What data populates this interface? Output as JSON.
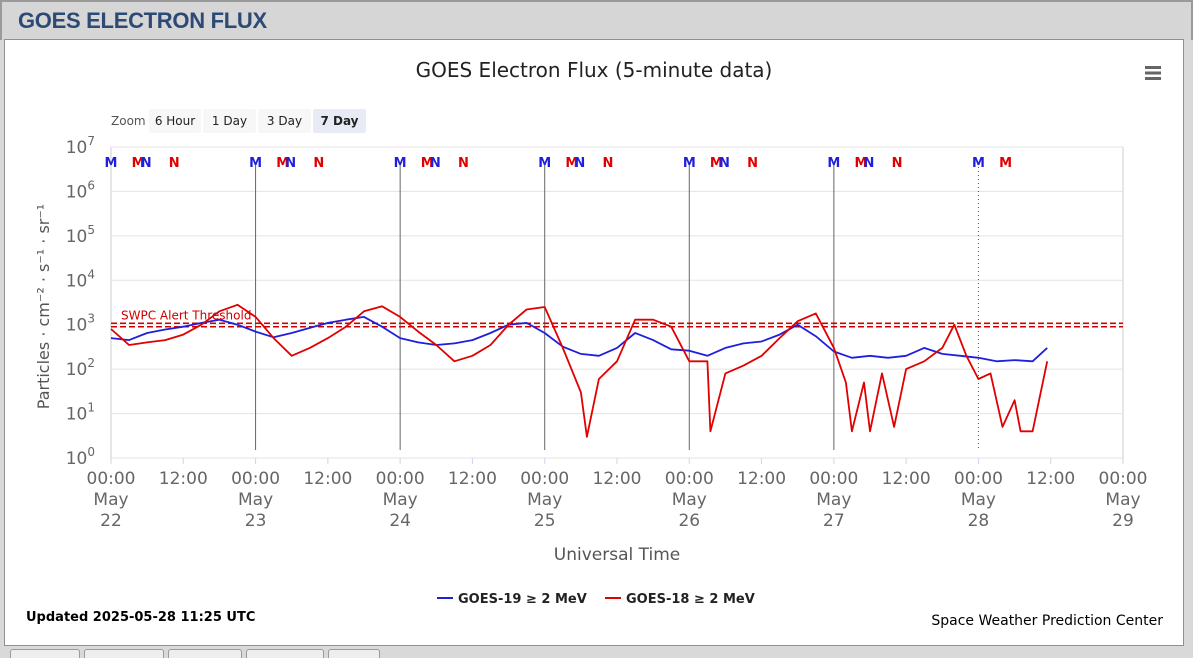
{
  "page": {
    "header_title": "GOES ELECTRON FLUX"
  },
  "colors": {
    "goes19": "#1f1fdc",
    "goes18": "#e00000",
    "header_text": "#2c4a74",
    "threshold": "#d00000"
  },
  "icons": {
    "menu": "hamburger-menu-icon"
  },
  "chart": {
    "title": "GOES Electron Flux (5-minute data)",
    "xlabel": "Universal Time",
    "ylabel": "Particles · cm⁻² · s⁻¹ · sr⁻¹",
    "zoom_label": "Zoom",
    "zoom_buttons": [
      "6 Hour",
      "1 Day",
      "3 Day",
      "7 Day"
    ],
    "zoom_selected": "7 Day",
    "threshold_label": "SWPC Alert Threshold",
    "updated": "Updated 2025-05-28 11:25 UTC",
    "credit": "Space Weather Prediction Center",
    "legend": [
      "GOES-19 ≥ 2 MeV",
      "GOES-18 ≥ 2 MeV"
    ]
  },
  "chart_data": {
    "type": "line",
    "title": "GOES Electron Flux (5-minute data)",
    "xlabel": "Universal Time",
    "ylabel": "Particles · cm⁻² · s⁻¹ · sr⁻¹",
    "y_scale": "log",
    "ylim": [
      1,
      10000000
    ],
    "y_ticks": [
      "10⁰",
      "10¹",
      "10²",
      "10³",
      "10⁴",
      "10⁵",
      "10⁶",
      "10⁷"
    ],
    "xlim": [
      "2025-05-22 00:00",
      "2025-05-29 00:00"
    ],
    "x_ticks": [
      {
        "time": "00:00",
        "date": "May",
        "day": "22"
      },
      {
        "time": "12:00"
      },
      {
        "time": "00:00",
        "date": "May",
        "day": "23"
      },
      {
        "time": "12:00"
      },
      {
        "time": "00:00",
        "date": "May",
        "day": "24"
      },
      {
        "time": "12:00"
      },
      {
        "time": "00:00",
        "date": "May",
        "day": "25"
      },
      {
        "time": "12:00"
      },
      {
        "time": "00:00",
        "date": "May",
        "day": "26"
      },
      {
        "time": "12:00"
      },
      {
        "time": "00:00",
        "date": "May",
        "day": "27"
      },
      {
        "time": "12:00"
      },
      {
        "time": "00:00",
        "date": "May",
        "day": "28"
      },
      {
        "time": "12:00"
      },
      {
        "time": "00:00",
        "date": "May",
        "day": "29"
      }
    ],
    "grid": true,
    "legend_position": "bottom-center",
    "threshold": {
      "label": "SWPC Alert Threshold",
      "value": 1000
    },
    "day_markers": [
      "2025-05-23 00:00",
      "2025-05-24 00:00",
      "2025-05-25 00:00",
      "2025-05-26 00:00",
      "2025-05-27 00:00",
      "2025-05-28 00:00"
    ],
    "local_time_markers": [
      {
        "label": "M",
        "series": "GOES-19",
        "time": "2025-05-22 00:00"
      },
      {
        "label": "M",
        "series": "GOES-18",
        "time": "2025-05-22 04:30"
      },
      {
        "label": "N",
        "series": "GOES-19",
        "time": "2025-05-22 05:50"
      },
      {
        "label": "N",
        "series": "GOES-18",
        "time": "2025-05-22 10:30"
      },
      {
        "label": "M",
        "series": "GOES-19",
        "time": "2025-05-23 00:00"
      },
      {
        "label": "M",
        "series": "GOES-18",
        "time": "2025-05-23 04:30"
      },
      {
        "label": "N",
        "series": "GOES-19",
        "time": "2025-05-23 05:50"
      },
      {
        "label": "N",
        "series": "GOES-18",
        "time": "2025-05-23 10:30"
      },
      {
        "label": "M",
        "series": "GOES-19",
        "time": "2025-05-24 00:00"
      },
      {
        "label": "M",
        "series": "GOES-18",
        "time": "2025-05-24 04:30"
      },
      {
        "label": "N",
        "series": "GOES-19",
        "time": "2025-05-24 05:50"
      },
      {
        "label": "N",
        "series": "GOES-18",
        "time": "2025-05-24 10:30"
      },
      {
        "label": "M",
        "series": "GOES-19",
        "time": "2025-05-25 00:00"
      },
      {
        "label": "M",
        "series": "GOES-18",
        "time": "2025-05-25 04:30"
      },
      {
        "label": "N",
        "series": "GOES-19",
        "time": "2025-05-25 05:50"
      },
      {
        "label": "N",
        "series": "GOES-18",
        "time": "2025-05-25 10:30"
      },
      {
        "label": "M",
        "series": "GOES-19",
        "time": "2025-05-26 00:00"
      },
      {
        "label": "M",
        "series": "GOES-18",
        "time": "2025-05-26 04:30"
      },
      {
        "label": "N",
        "series": "GOES-19",
        "time": "2025-05-26 05:50"
      },
      {
        "label": "N",
        "series": "GOES-18",
        "time": "2025-05-26 10:30"
      },
      {
        "label": "M",
        "series": "GOES-19",
        "time": "2025-05-27 00:00"
      },
      {
        "label": "M",
        "series": "GOES-18",
        "time": "2025-05-27 04:30"
      },
      {
        "label": "N",
        "series": "GOES-19",
        "time": "2025-05-27 05:50"
      },
      {
        "label": "N",
        "series": "GOES-18",
        "time": "2025-05-27 10:30"
      },
      {
        "label": "M",
        "series": "GOES-19",
        "time": "2025-05-28 00:00"
      },
      {
        "label": "M",
        "series": "GOES-18",
        "time": "2025-05-28 04:30"
      }
    ],
    "series": [
      {
        "name": "GOES-19 ≥ 2 MeV",
        "color": "#1f1fdc",
        "points": [
          [
            "2025-05-22 00:00",
            500
          ],
          [
            "2025-05-22 03:00",
            450
          ],
          [
            "2025-05-22 06:00",
            650
          ],
          [
            "2025-05-22 09:00",
            780
          ],
          [
            "2025-05-22 12:00",
            900
          ],
          [
            "2025-05-22 15:00",
            1100
          ],
          [
            "2025-05-22 18:00",
            1300
          ],
          [
            "2025-05-22 21:00",
            1000
          ],
          [
            "2025-05-23 00:00",
            700
          ],
          [
            "2025-05-23 03:00",
            520
          ],
          [
            "2025-05-23 06:00",
            650
          ],
          [
            "2025-05-23 09:00",
            850
          ],
          [
            "2025-05-23 12:00",
            1100
          ],
          [
            "2025-05-23 15:00",
            1300
          ],
          [
            "2025-05-23 18:00",
            1500
          ],
          [
            "2025-05-23 21:00",
            900
          ],
          [
            "2025-05-24 00:00",
            500
          ],
          [
            "2025-05-24 03:00",
            400
          ],
          [
            "2025-05-24 06:00",
            350
          ],
          [
            "2025-05-24 09:00",
            380
          ],
          [
            "2025-05-24 12:00",
            450
          ],
          [
            "2025-05-24 15:00",
            650
          ],
          [
            "2025-05-24 18:00",
            1000
          ],
          [
            "2025-05-24 21:00",
            1100
          ],
          [
            "2025-05-25 00:00",
            650
          ],
          [
            "2025-05-25 03:00",
            320
          ],
          [
            "2025-05-25 06:00",
            220
          ],
          [
            "2025-05-25 09:00",
            200
          ],
          [
            "2025-05-25 12:00",
            300
          ],
          [
            "2025-05-25 15:00",
            650
          ],
          [
            "2025-05-25 18:00",
            450
          ],
          [
            "2025-05-25 21:00",
            280
          ],
          [
            "2025-05-26 00:00",
            260
          ],
          [
            "2025-05-26 03:00",
            200
          ],
          [
            "2025-05-26 06:00",
            300
          ],
          [
            "2025-05-26 09:00",
            380
          ],
          [
            "2025-05-26 12:00",
            420
          ],
          [
            "2025-05-26 15:00",
            600
          ],
          [
            "2025-05-26 18:00",
            1000
          ],
          [
            "2025-05-26 21:00",
            550
          ],
          [
            "2025-05-27 00:00",
            250
          ],
          [
            "2025-05-27 03:00",
            180
          ],
          [
            "2025-05-27 06:00",
            200
          ],
          [
            "2025-05-27 09:00",
            180
          ],
          [
            "2025-05-27 12:00",
            200
          ],
          [
            "2025-05-27 15:00",
            300
          ],
          [
            "2025-05-27 18:00",
            220
          ],
          [
            "2025-05-27 21:00",
            200
          ],
          [
            "2025-05-28 00:00",
            180
          ],
          [
            "2025-05-28 03:00",
            150
          ],
          [
            "2025-05-28 06:00",
            160
          ],
          [
            "2025-05-28 09:00",
            150
          ],
          [
            "2025-05-28 11:25",
            300
          ]
        ]
      },
      {
        "name": "GOES-18 ≥ 2 MeV",
        "color": "#e00000",
        "points": [
          [
            "2025-05-22 00:00",
            800
          ],
          [
            "2025-05-22 03:00",
            350
          ],
          [
            "2025-05-22 06:00",
            400
          ],
          [
            "2025-05-22 09:00",
            450
          ],
          [
            "2025-05-22 12:00",
            600
          ],
          [
            "2025-05-22 15:00",
            1000
          ],
          [
            "2025-05-22 18:00",
            2000
          ],
          [
            "2025-05-22 21:00",
            2800
          ],
          [
            "2025-05-23 00:00",
            1500
          ],
          [
            "2025-05-23 03:00",
            500
          ],
          [
            "2025-05-23 06:00",
            200
          ],
          [
            "2025-05-23 09:00",
            300
          ],
          [
            "2025-05-23 12:00",
            500
          ],
          [
            "2025-05-23 15:00",
            900
          ],
          [
            "2025-05-23 18:00",
            2000
          ],
          [
            "2025-05-23 21:00",
            2600
          ],
          [
            "2025-05-24 00:00",
            1500
          ],
          [
            "2025-05-24 03:00",
            700
          ],
          [
            "2025-05-24 06:00",
            350
          ],
          [
            "2025-05-24 09:00",
            150
          ],
          [
            "2025-05-24 12:00",
            200
          ],
          [
            "2025-05-24 15:00",
            350
          ],
          [
            "2025-05-24 18:00",
            1000
          ],
          [
            "2025-05-24 21:00",
            2200
          ],
          [
            "2025-05-25 00:00",
            2500
          ],
          [
            "2025-05-25 03:00",
            300
          ],
          [
            "2025-05-25 06:00",
            30
          ],
          [
            "2025-05-25 07:00",
            3
          ],
          [
            "2025-05-25 09:00",
            60
          ],
          [
            "2025-05-25 12:00",
            150
          ],
          [
            "2025-05-25 15:00",
            1300
          ],
          [
            "2025-05-25 18:00",
            1300
          ],
          [
            "2025-05-25 21:00",
            900
          ],
          [
            "2025-05-26 00:00",
            150
          ],
          [
            "2025-05-26 03:00",
            150
          ],
          [
            "2025-05-26 03:30",
            4
          ],
          [
            "2025-05-26 06:00",
            80
          ],
          [
            "2025-05-26 09:00",
            120
          ],
          [
            "2025-05-26 12:00",
            200
          ],
          [
            "2025-05-26 15:00",
            500
          ],
          [
            "2025-05-26 18:00",
            1200
          ],
          [
            "2025-05-26 21:00",
            1800
          ],
          [
            "2025-05-27 00:00",
            300
          ],
          [
            "2025-05-27 02:00",
            50
          ],
          [
            "2025-05-27 03:00",
            4
          ],
          [
            "2025-05-27 05:00",
            50
          ],
          [
            "2025-05-27 06:00",
            4
          ],
          [
            "2025-05-27 08:00",
            80
          ],
          [
            "2025-05-27 10:00",
            5
          ],
          [
            "2025-05-27 12:00",
            100
          ],
          [
            "2025-05-27 15:00",
            150
          ],
          [
            "2025-05-27 18:00",
            300
          ],
          [
            "2025-05-27 20:00",
            1000
          ],
          [
            "2025-05-27 22:00",
            200
          ],
          [
            "2025-05-28 00:00",
            60
          ],
          [
            "2025-05-28 02:00",
            80
          ],
          [
            "2025-05-28 04:00",
            5
          ],
          [
            "2025-05-28 06:00",
            20
          ],
          [
            "2025-05-28 07:00",
            4
          ],
          [
            "2025-05-28 09:00",
            4
          ],
          [
            "2025-05-28 11:25",
            150
          ]
        ]
      }
    ]
  }
}
